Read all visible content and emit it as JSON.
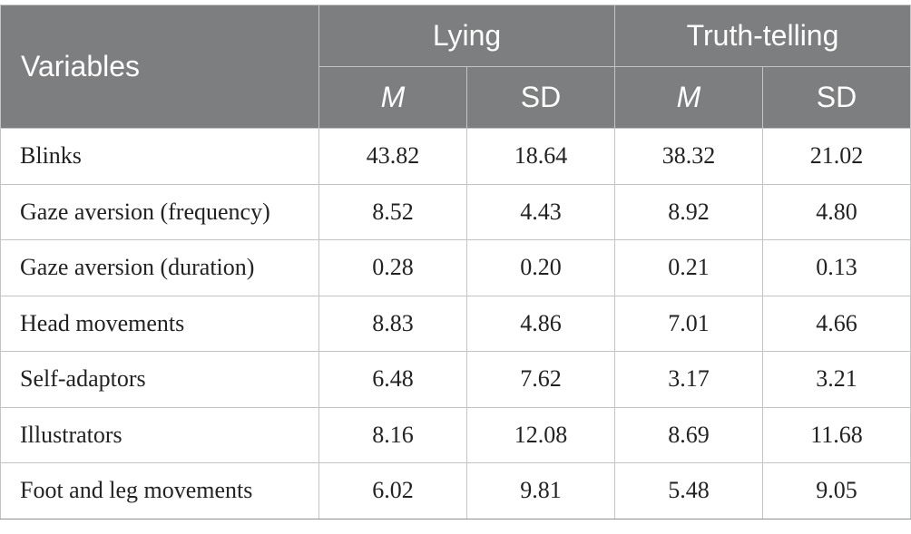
{
  "table": {
    "variables_header": "Variables",
    "groups": [
      {
        "label": "Lying",
        "sub": [
          "M",
          "SD"
        ]
      },
      {
        "label": "Truth-telling",
        "sub": [
          "M",
          "SD"
        ]
      }
    ],
    "rows": [
      {
        "label": "Blinks",
        "values": [
          "43.82",
          "18.64",
          "38.32",
          "21.02"
        ]
      },
      {
        "label": "Gaze aversion (frequency)",
        "values": [
          "8.52",
          "4.43",
          "8.92",
          "4.80"
        ]
      },
      {
        "label": "Gaze aversion (duration)",
        "values": [
          "0.28",
          "0.20",
          "0.21",
          "0.13"
        ]
      },
      {
        "label": "Head movements",
        "values": [
          "8.83",
          "4.86",
          "7.01",
          "4.66"
        ]
      },
      {
        "label": "Self-adaptors",
        "values": [
          "6.48",
          "7.62",
          "3.17",
          "3.21"
        ]
      },
      {
        "label": "Illustrators",
        "values": [
          "8.16",
          "12.08",
          "8.69",
          "11.68"
        ]
      },
      {
        "label": "Foot and leg movements",
        "values": [
          "6.02",
          "9.81",
          "5.48",
          "9.05"
        ]
      }
    ]
  },
  "colors": {
    "header_bg": "#7d7e7f",
    "header_text": "#ffffff",
    "grid": "#c3c4c5",
    "body_text": "#222222"
  }
}
